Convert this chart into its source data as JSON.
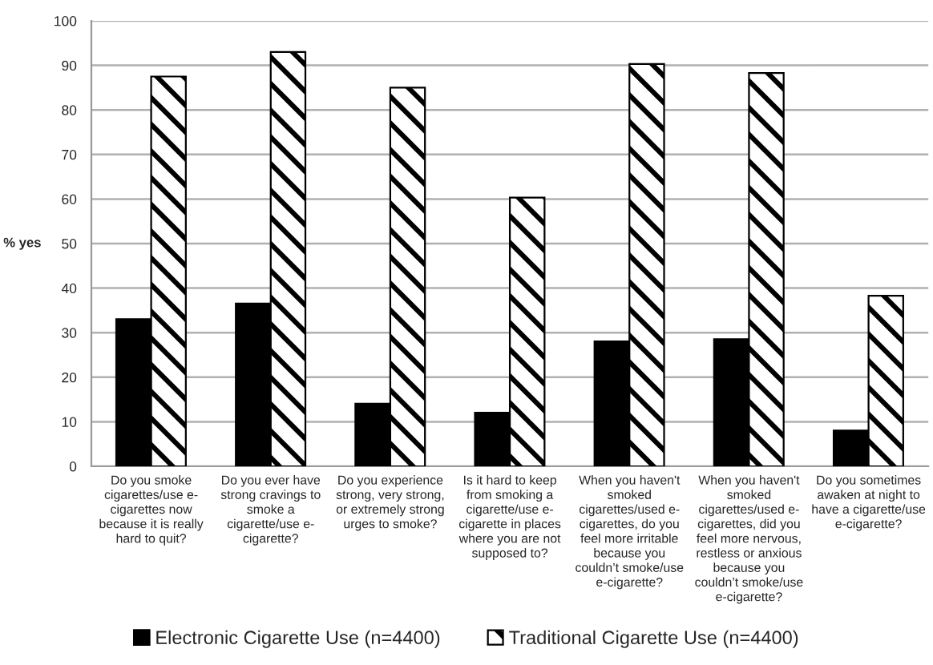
{
  "chart_data": {
    "type": "bar",
    "categories": [
      "Do you smoke\ncigarettes/use e-\ncigarettes now\nbecause it is really\nhard to quit?",
      "Do you ever have\nstrong cravings to\nsmoke a\ncigarette/use e-\ncigarette?",
      "Do you experience\nstrong, very strong,\nor extremely strong\nurges to smoke?",
      "Is it hard to keep\nfrom smoking a\ncigarette/use e-\ncigarette in places\nwhere you are not\nsupposed to?",
      "When you haven't\nsmoked\ncigarettes/used e-\ncigarettes, do you\nfeel more irritable\nbecause you\ncouldn’t smoke/use\ne-cigarette?",
      "When you haven't\nsmoked\ncigarettes/used e-\ncigarettes, did you\nfeel more nervous,\nrestless or anxious\nbecause you\ncouldn’t smoke/use\ne-cigarette?",
      "Do you sometimes\nawaken at night to\nhave a cigarette/use\ne-cigarette?"
    ],
    "series": [
      {
        "name": "Electronic Cigarette Use (n=4400)",
        "color": "#000000",
        "values": [
          33,
          36.5,
          14,
          12,
          28,
          28.5,
          8
        ]
      },
      {
        "name": "Traditional Cigarette Use (n=4400)",
        "color": "#000000",
        "values": [
          87.5,
          93,
          85,
          60.3,
          90.3,
          88.3,
          38.3
        ]
      }
    ],
    "ylabel": "% yes",
    "ylim": [
      0,
      100
    ],
    "yticks": [
      0,
      10,
      20,
      30,
      40,
      50,
      60,
      70,
      80,
      90,
      100
    ],
    "grid": "y",
    "legend": "bottom"
  }
}
